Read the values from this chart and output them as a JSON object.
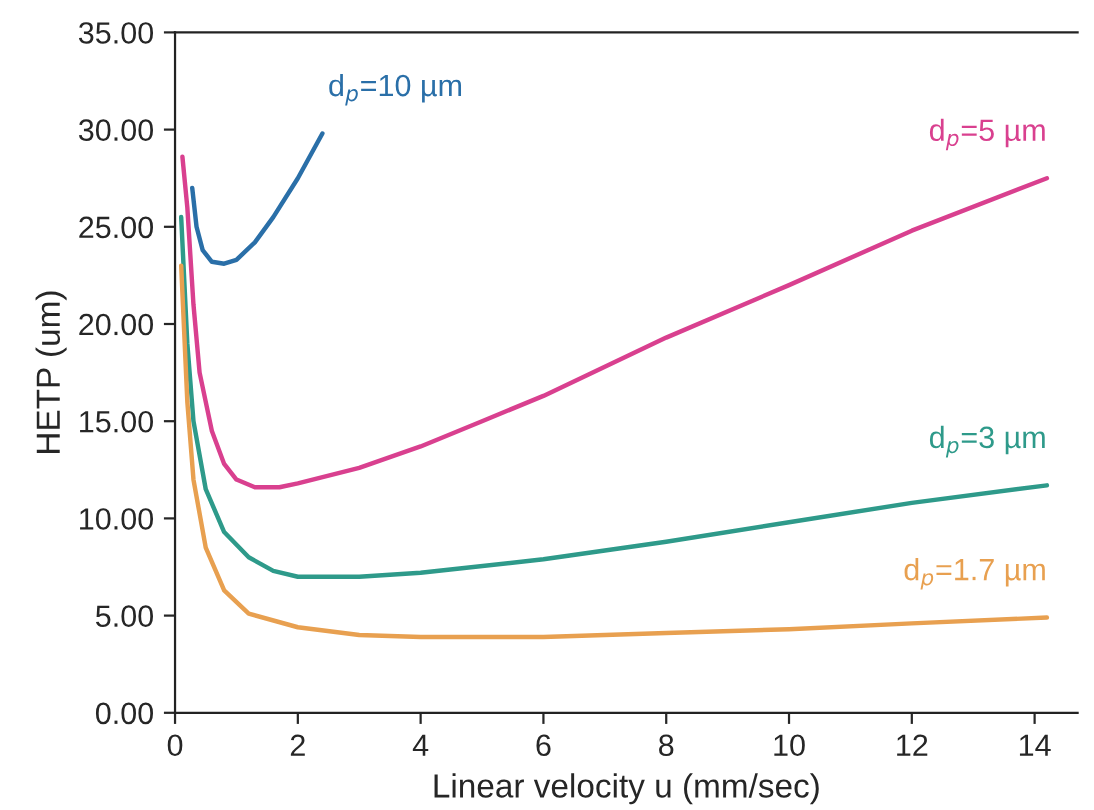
{
  "chart_data": {
    "type": "line",
    "xlabel": "Linear velocity u (mm/sec)",
    "ylabel": "HETP (um)",
    "xlim": [
      0,
      14.7
    ],
    "ylim": [
      0,
      35
    ],
    "xticks": [
      0,
      2,
      4,
      6,
      8,
      10,
      12,
      14
    ],
    "yticks": [
      {
        "value": 0,
        "label": "0.00"
      },
      {
        "value": 5,
        "label": "5.00"
      },
      {
        "value": 10,
        "label": "10.00"
      },
      {
        "value": 15,
        "label": "15.00"
      },
      {
        "value": 20,
        "label": "20.00"
      },
      {
        "value": 25,
        "label": "25.00"
      },
      {
        "value": 30,
        "label": "30.00"
      },
      {
        "value": 35,
        "label": "35.00"
      }
    ],
    "grid": false,
    "legend": false,
    "marker": "none",
    "line_style": "solid",
    "series": [
      {
        "name": "d$_{p}$=10 µm",
        "color": "#2a6fa8",
        "x": [
          0.28,
          0.35,
          0.45,
          0.6,
          0.8,
          1.0,
          1.3,
          1.6,
          2.0,
          2.4
        ],
        "values": [
          27.0,
          25.0,
          23.8,
          23.2,
          23.1,
          23.3,
          24.2,
          25.5,
          27.5,
          29.8
        ]
      },
      {
        "name": "d$_{p}$=5 µm",
        "color": "#d9408f",
        "x": [
          0.12,
          0.2,
          0.3,
          0.4,
          0.6,
          0.8,
          1.0,
          1.3,
          1.7,
          2.0,
          3,
          4,
          5,
          6,
          8,
          10,
          12,
          14.2
        ],
        "values": [
          28.6,
          26,
          21,
          17.5,
          14.5,
          12.8,
          12.0,
          11.6,
          11.6,
          11.8,
          12.6,
          13.7,
          15,
          16.3,
          19.3,
          22,
          24.8,
          27.5
        ]
      },
      {
        "name": "d$_{p}$=3 µm",
        "color": "#2e9a8a",
        "x": [
          0.1,
          0.2,
          0.3,
          0.5,
          0.8,
          1.2,
          1.6,
          2,
          3,
          4,
          6,
          8,
          10,
          12,
          14.2
        ],
        "values": [
          25.5,
          19,
          15,
          11.5,
          9.3,
          8,
          7.3,
          7.0,
          7.0,
          7.2,
          7.9,
          8.8,
          9.8,
          10.8,
          11.7
        ]
      },
      {
        "name": "d$_{p}$=1.7 µm",
        "color": "#e8a050",
        "x": [
          0.1,
          0.2,
          0.3,
          0.5,
          0.8,
          1.2,
          2,
          3,
          4,
          6,
          8,
          10,
          12,
          14.2
        ],
        "values": [
          23,
          16,
          12,
          8.5,
          6.3,
          5.1,
          4.4,
          4.0,
          3.9,
          3.9,
          4.1,
          4.3,
          4.6,
          4.9
        ]
      }
    ]
  }
}
